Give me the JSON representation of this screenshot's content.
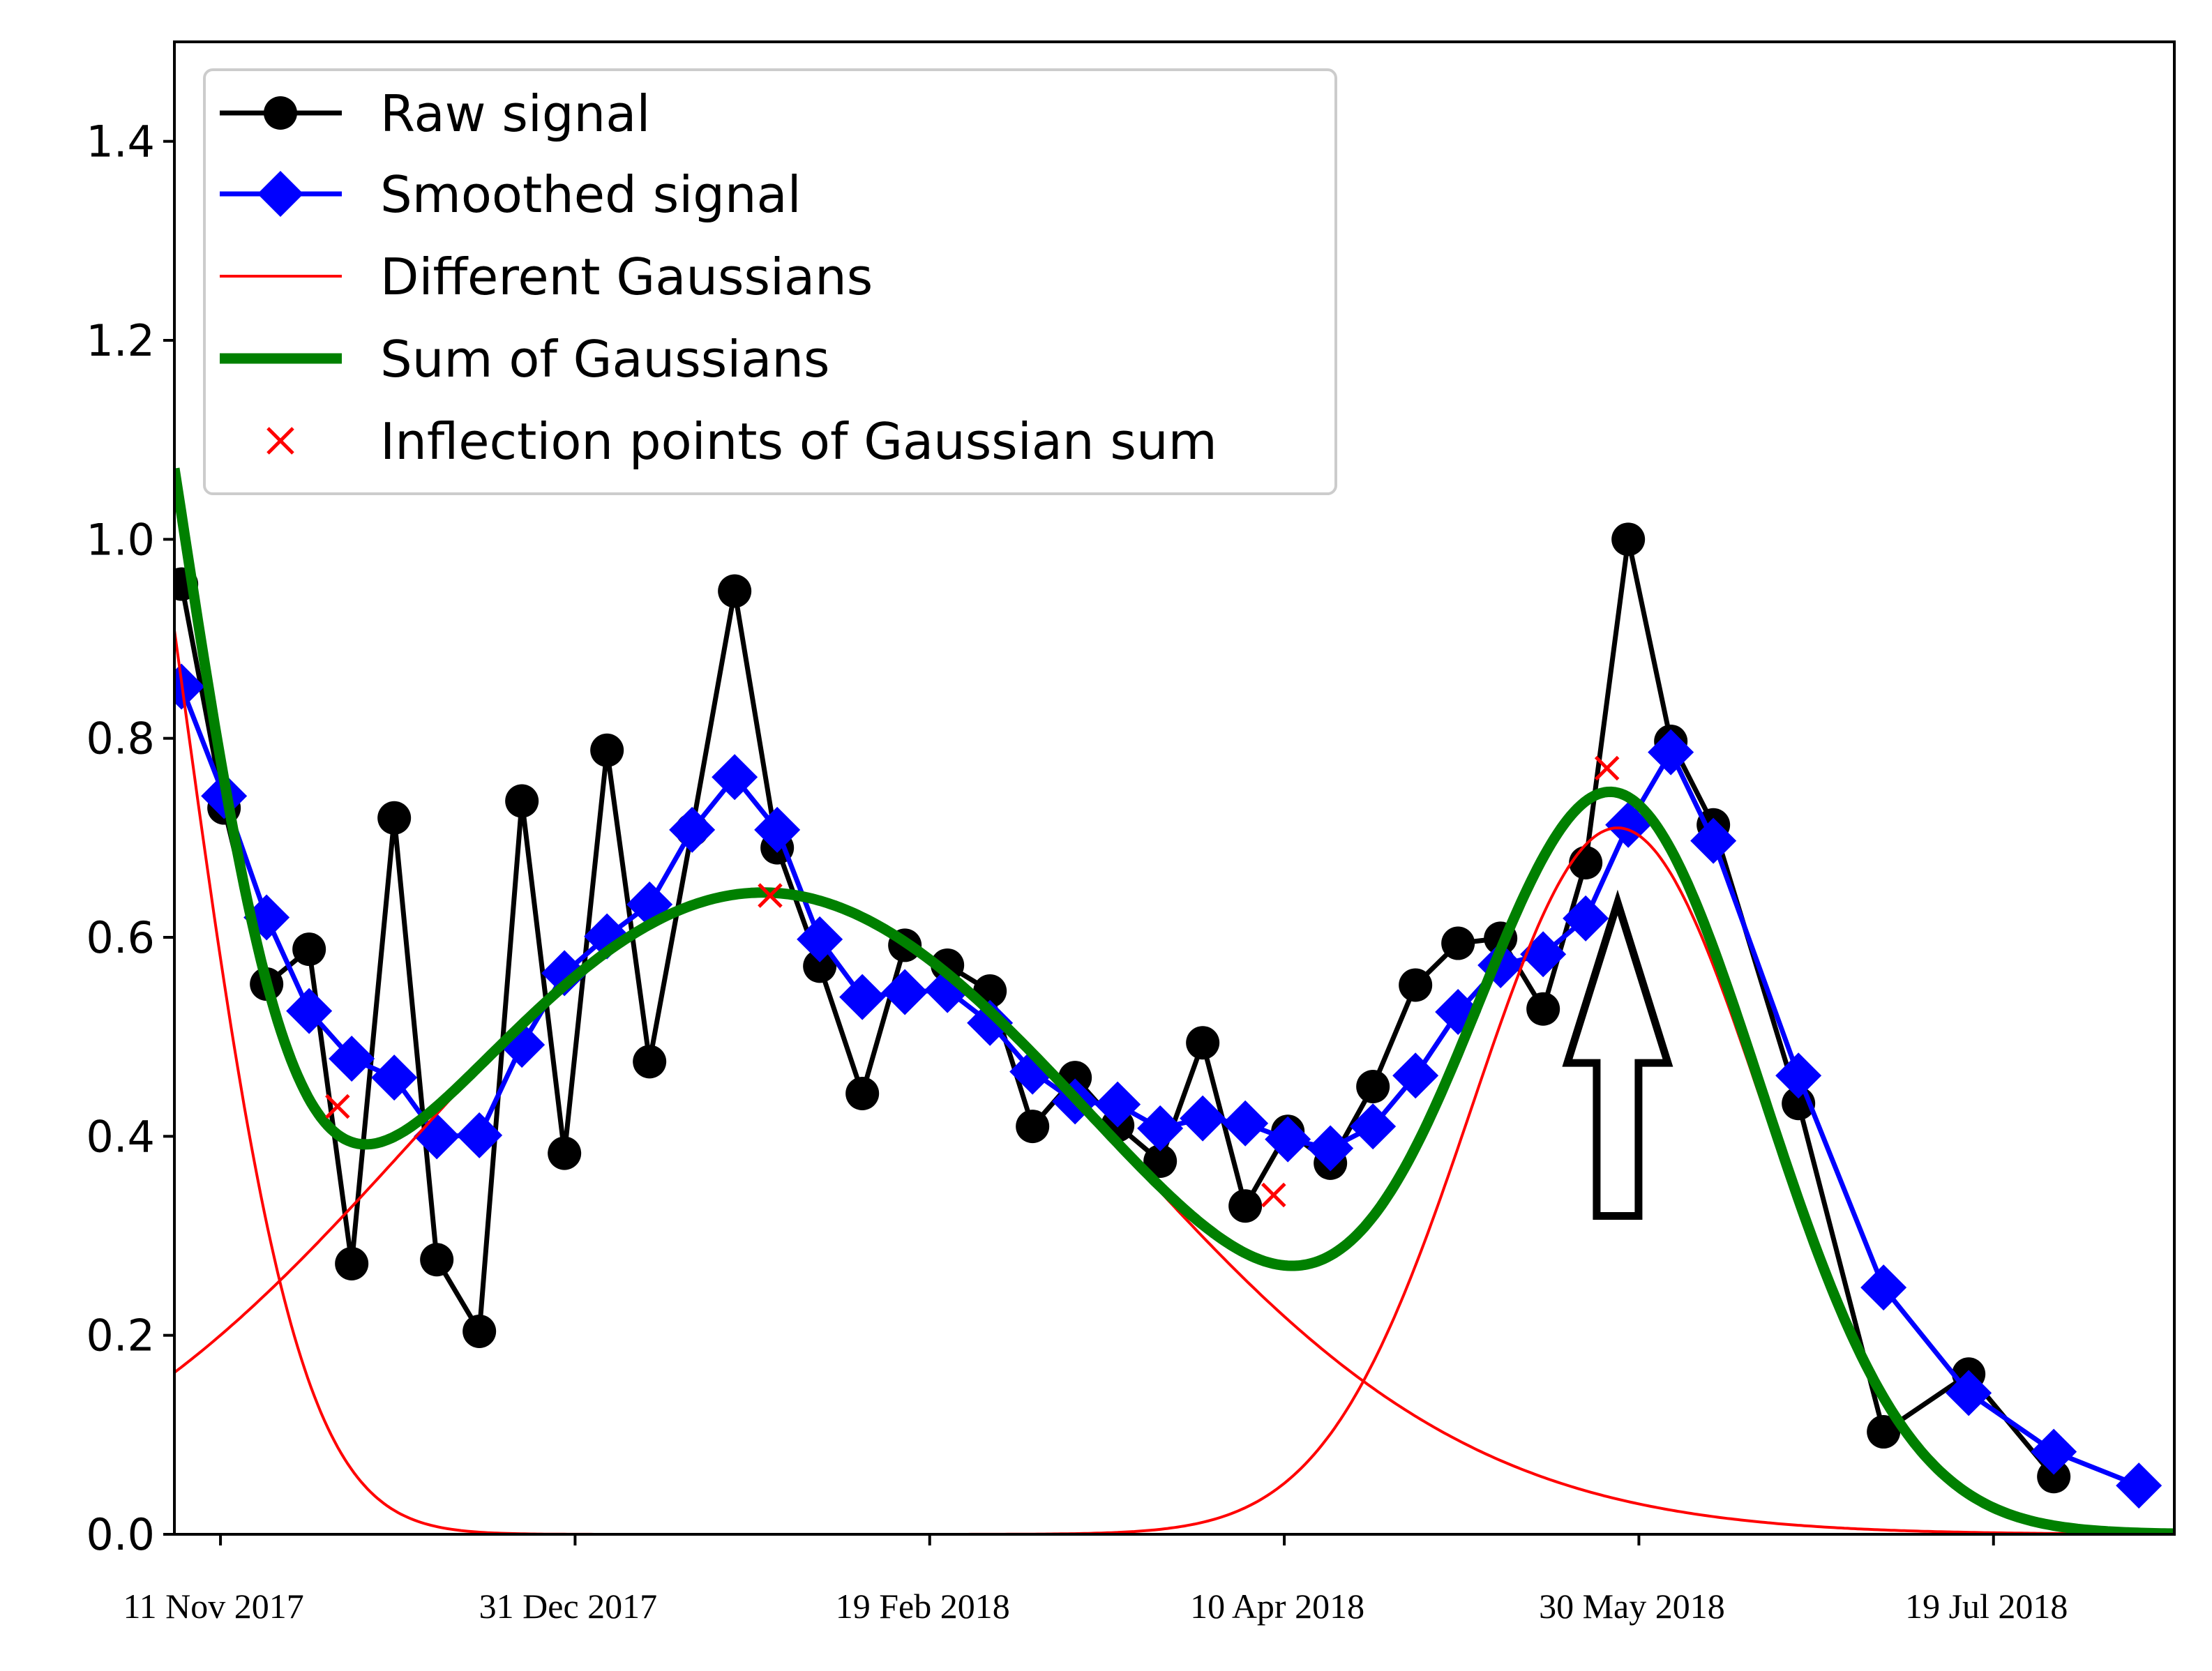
{
  "chart_data": {
    "type": "line",
    "title": "",
    "xlabel": "",
    "ylabel": "",
    "ylim": [
      0.0,
      1.5
    ],
    "xlim_days": [
      -6.5,
      275.5
    ],
    "y_ticks": [
      {
        "value": 0.0,
        "label": "0.0"
      },
      {
        "value": 0.2,
        "label": "0.2"
      },
      {
        "value": 0.4,
        "label": "0.4"
      },
      {
        "value": 0.6,
        "label": "0.6"
      },
      {
        "value": 0.8,
        "label": "0.8"
      },
      {
        "value": 1.0,
        "label": "1.0"
      },
      {
        "value": 1.2,
        "label": "1.2"
      },
      {
        "value": 1.4,
        "label": "1.4"
      }
    ],
    "x_ticks": [
      {
        "day": 0,
        "label": "11 Nov 2017"
      },
      {
        "day": 50,
        "label": "31 Dec 2017"
      },
      {
        "day": 100,
        "label": "19 Feb 2018"
      },
      {
        "day": 150,
        "label": "10 Apr 2018"
      },
      {
        "day": 200,
        "label": "30 May 2018"
      },
      {
        "day": 250,
        "label": "19 Jul 2018"
      }
    ],
    "legend": {
      "position": "top-left",
      "entries": [
        {
          "label": "Raw signal",
          "color": "#000000",
          "marker": "circle"
        },
        {
          "label": "Smoothed signal",
          "color": "#0000ff",
          "marker": "diamond"
        },
        {
          "label": "Different Gaussians",
          "color": "#ff0000",
          "marker": "none"
        },
        {
          "label": "Sum of Gaussians",
          "color": "#008000",
          "marker": "none"
        },
        {
          "label": "Inflection points of Gaussian sum",
          "color": "#ff0000",
          "marker": "x"
        }
      ]
    },
    "series": [
      {
        "name": "Raw signal",
        "color": "#000000",
        "marker": "circle",
        "x": [
          -5.5,
          0.5,
          6.5,
          12.5,
          18.5,
          24.5,
          30.5,
          36.5,
          42.5,
          48.5,
          54.5,
          60.5,
          66.5,
          72.5,
          78.5,
          84.5,
          90.5,
          96.5,
          102.5,
          108.5,
          114.5,
          120.5,
          126.5,
          132.5,
          138.5,
          144.5,
          150.5,
          156.5,
          162.5,
          168.5,
          174.5,
          180.5,
          186.5,
          192.5,
          198.5,
          204.5,
          210.5,
          222.5,
          234.5,
          246.5,
          258.5
        ],
        "y": [
          0.955,
          0.73,
          0.553,
          0.588,
          0.272,
          0.72,
          0.276,
          0.204,
          0.737,
          0.383,
          0.788,
          0.475,
          0.708,
          0.948,
          0.69,
          0.571,
          0.443,
          0.592,
          0.572,
          0.546,
          0.41,
          0.459,
          0.411,
          0.375,
          0.494,
          0.33,
          0.405,
          0.373,
          0.45,
          0.552,
          0.594,
          0.599,
          0.528,
          0.675,
          1.0,
          0.797,
          0.713,
          0.433,
          0.103,
          0.161,
          0.058
        ]
      },
      {
        "name": "Smoothed signal",
        "color": "#0000ff",
        "marker": "diamond",
        "x": [
          -5.5,
          0.5,
          6.5,
          12.5,
          18.5,
          24.5,
          30.5,
          36.5,
          42.5,
          48.5,
          54.5,
          60.5,
          66.5,
          72.5,
          78.5,
          84.5,
          90.5,
          96.5,
          102.5,
          108.5,
          114.5,
          120.5,
          126.5,
          132.5,
          138.5,
          144.5,
          150.5,
          156.5,
          162.5,
          168.5,
          174.5,
          180.5,
          186.5,
          192.5,
          198.5,
          204.5,
          210.5,
          222.5,
          234.5,
          246.5,
          258.5,
          270.5
        ],
        "y": [
          0.852,
          0.742,
          0.62,
          0.526,
          0.478,
          0.459,
          0.4,
          0.401,
          0.492,
          0.564,
          0.601,
          0.633,
          0.708,
          0.761,
          0.708,
          0.598,
          0.54,
          0.545,
          0.547,
          0.514,
          0.465,
          0.435,
          0.432,
          0.408,
          0.418,
          0.413,
          0.397,
          0.388,
          0.41,
          0.461,
          0.525,
          0.572,
          0.583,
          0.619,
          0.713,
          0.786,
          0.697,
          0.461,
          0.248,
          0.142,
          0.083,
          0.049
        ]
      },
      {
        "name": "Different Gaussians",
        "color": "#ff0000",
        "kind": "gaussian",
        "components": [
          {
            "amplitude": 1.37,
            "center": -21,
            "sigma": 16
          },
          {
            "amplitude": 0.645,
            "center": 76.5,
            "sigma": 50
          },
          {
            "amplitude": 0.71,
            "center": 197,
            "sigma": 20.5
          }
        ]
      },
      {
        "name": "Sum of Gaussians",
        "color": "#008000",
        "kind": "gaussian_sum"
      },
      {
        "name": "Inflection points of Gaussian sum",
        "color": "#ff0000",
        "marker": "x",
        "x": [
          16.5,
          77.5,
          148.5,
          195.5
        ],
        "y": [
          0.43,
          0.642,
          0.341,
          0.77
        ]
      }
    ],
    "annotations": [
      {
        "type": "arrow",
        "direction": "up",
        "style": "hollow",
        "day": 197,
        "y_tip": 0.635,
        "y_tail": 0.32
      }
    ]
  }
}
